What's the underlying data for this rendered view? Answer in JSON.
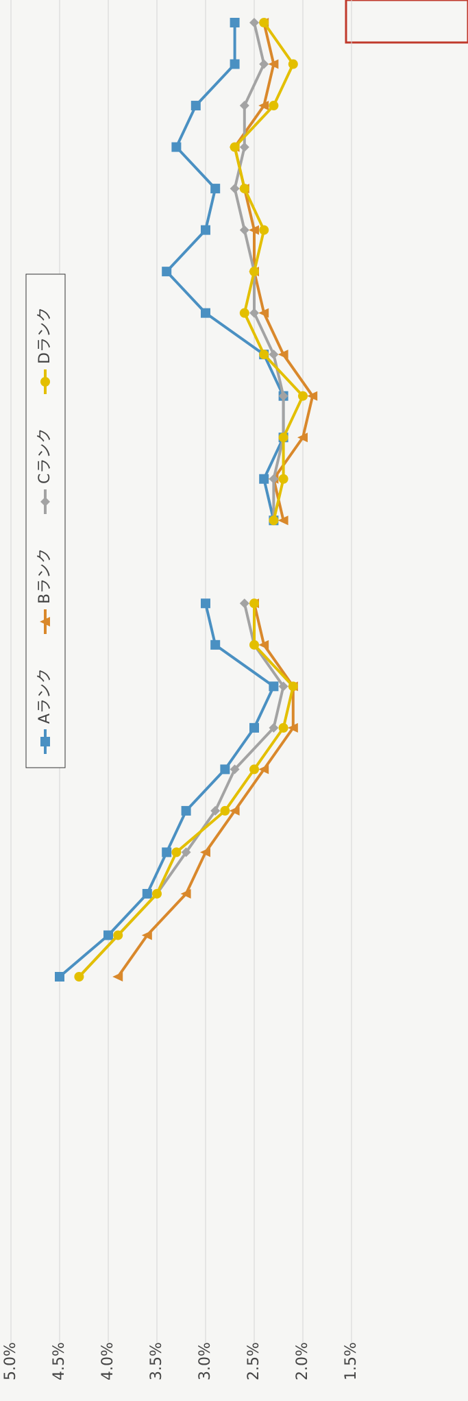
{
  "chart_data": {
    "type": "line",
    "categories": [
      null,
      null,
      null,
      null,
      null,
      null,
      null,
      null,
      null,
      null,
      null,
      null,
      null,
      null,
      null,
      null,
      null,
      null,
      null,
      null,
      null,
      null,
      null,
      null
    ],
    "series": [
      {
        "name": "Aランク",
        "color": "#4a90c2",
        "marker": "square",
        "values": [
          4.5,
          4.0,
          3.6,
          3.4,
          3.2,
          2.8,
          2.5,
          2.3,
          2.9,
          3.0,
          null,
          2.3,
          2.4,
          2.2,
          2.2,
          2.4,
          3.0,
          3.4,
          3.0,
          2.9,
          3.3,
          3.1,
          2.7,
          2.7
        ]
      },
      {
        "name": "Bランク",
        "color": "#d9882b",
        "marker": "triangle",
        "values": [
          3.9,
          3.6,
          3.2,
          3.0,
          2.7,
          2.4,
          2.1,
          2.1,
          2.4,
          2.5,
          null,
          2.2,
          2.3,
          2.0,
          1.9,
          2.2,
          2.4,
          2.5,
          2.5,
          2.6,
          2.7,
          2.4,
          2.3,
          2.4
        ]
      },
      {
        "name": "Cランク",
        "color": "#a3a3a3",
        "marker": "diamond",
        "values": [
          4.3,
          3.9,
          3.5,
          3.2,
          2.9,
          2.7,
          2.3,
          2.2,
          2.5,
          2.6,
          null,
          2.3,
          2.3,
          2.2,
          2.2,
          2.3,
          2.5,
          2.5,
          2.6,
          2.7,
          2.6,
          2.6,
          2.4,
          2.5
        ]
      },
      {
        "name": "Dランク",
        "color": "#e3bf00",
        "marker": "circle",
        "values": [
          4.3,
          3.9,
          3.5,
          3.3,
          2.8,
          2.5,
          2.2,
          2.1,
          2.5,
          2.5,
          null,
          2.3,
          2.2,
          2.2,
          2.0,
          2.4,
          2.6,
          2.5,
          2.4,
          2.6,
          2.7,
          2.3,
          2.1,
          2.4
        ]
      }
    ],
    "ylim": [
      1.5,
      5.0
    ],
    "yticks": [
      {
        "value": 1.5,
        "label": "1.5%"
      },
      {
        "value": 2.0,
        "label": "2.0%"
      },
      {
        "value": 2.5,
        "label": "2.5%"
      },
      {
        "value": 3.0,
        "label": "3.0%"
      },
      {
        "value": 3.5,
        "label": "3.5%"
      },
      {
        "value": 4.0,
        "label": "4.0%"
      },
      {
        "value": 4.5,
        "label": "4.5%"
      },
      {
        "value": 5.0,
        "label": "5.0%"
      }
    ],
    "grid": true,
    "legend": "top"
  }
}
